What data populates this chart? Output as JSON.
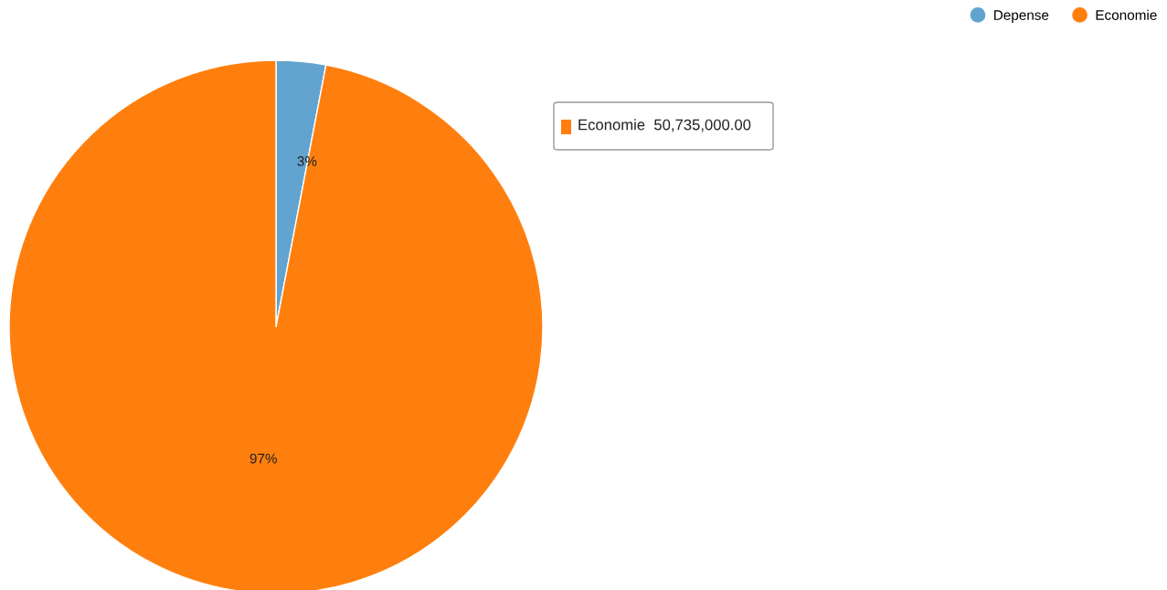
{
  "chart_data": {
    "type": "pie",
    "categories": [
      "Depense",
      "Economie"
    ],
    "values": [
      3,
      97
    ],
    "colors": [
      "#62a3cf",
      "#ff7f0e"
    ],
    "value_labels": [
      "3%",
      "97%"
    ],
    "legend": "top right",
    "annotations": [
      "Economie  50,735,000.00"
    ]
  }
}
